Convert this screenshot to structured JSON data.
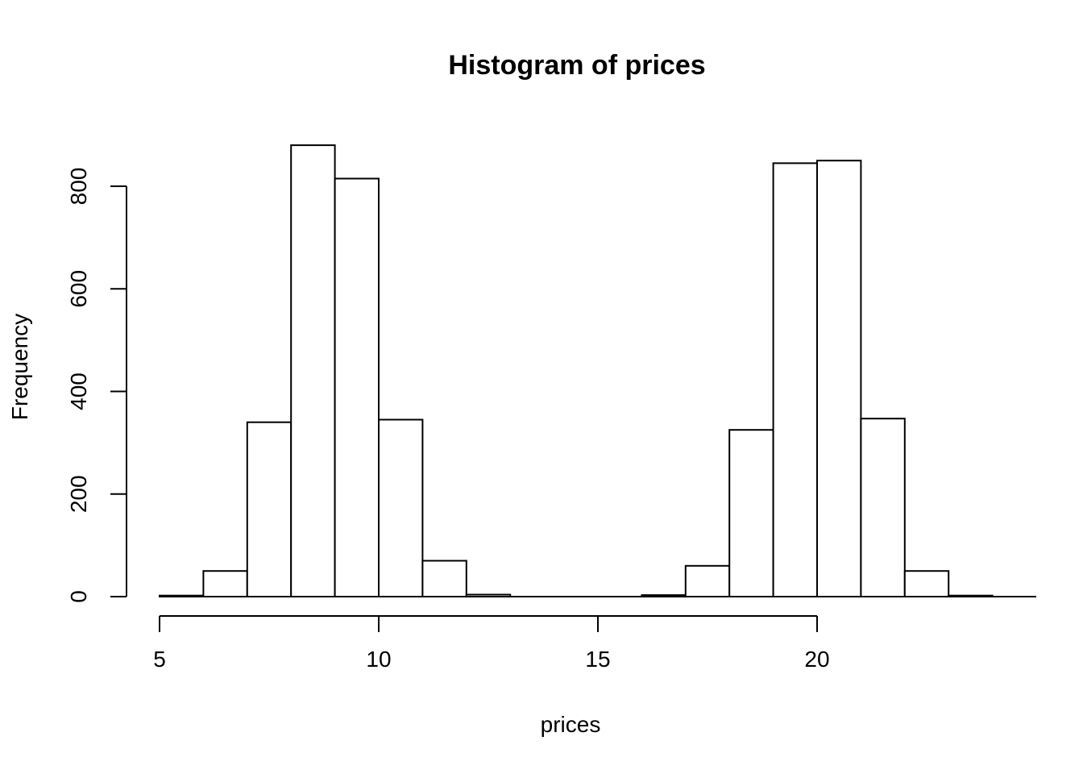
{
  "page": {
    "background_color": "#ffffff",
    "foreground_color": "#000000"
  },
  "chart_data": {
    "type": "bar",
    "subtype": "histogram",
    "title": "Histogram of prices",
    "xlabel": "prices",
    "ylabel": "Frequency",
    "bin_width": 1,
    "bin_edges": [
      5,
      6,
      7,
      8,
      9,
      10,
      11,
      12,
      13,
      14,
      15,
      16,
      17,
      18,
      19,
      20,
      21,
      22,
      23,
      24
    ],
    "counts": [
      2,
      50,
      340,
      880,
      815,
      345,
      70,
      4,
      0,
      0,
      0,
      3,
      60,
      325,
      845,
      850,
      347,
      50,
      2
    ],
    "x_ticks": [
      5,
      10,
      15,
      20
    ],
    "y_ticks": [
      0,
      200,
      400,
      600,
      800
    ],
    "xlim": [
      5,
      24
    ],
    "ylim": [
      0,
      880
    ],
    "grid": false,
    "legend": false,
    "bar_fill": "#ffffff",
    "bar_stroke": "#000000",
    "axis_color": "#000000"
  }
}
